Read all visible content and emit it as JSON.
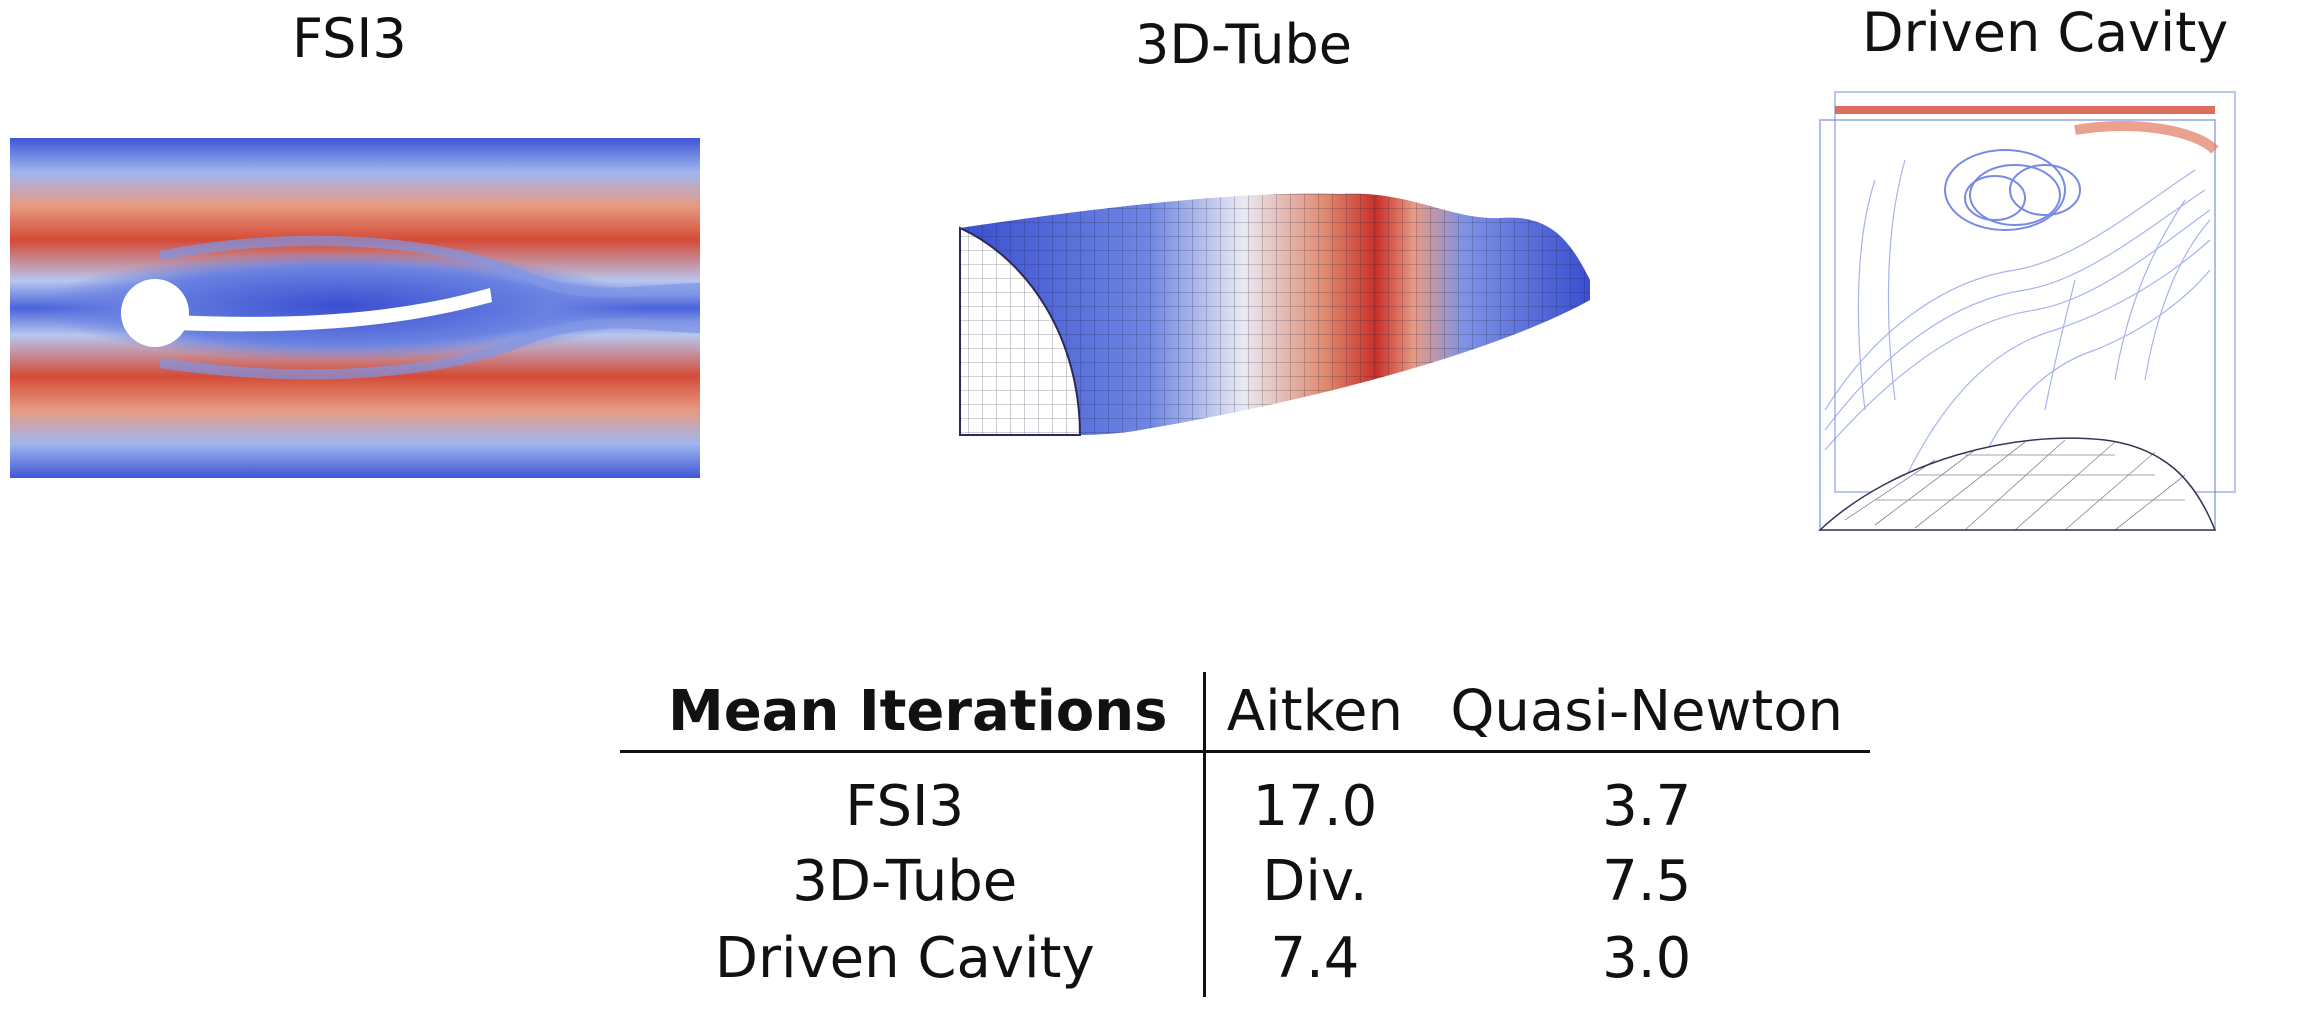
{
  "panels": [
    {
      "title": "FSI3",
      "image": "fsi3-flow-field"
    },
    {
      "title": "3D-Tube",
      "image": "3d-tube-mesh"
    },
    {
      "title": "Driven Cavity",
      "image": "driven-cavity-streamlines"
    }
  ],
  "table": {
    "header": {
      "label": "Mean Iterations",
      "columns": [
        "Aitken",
        "Quasi-Newton"
      ]
    },
    "rows": [
      {
        "case": "FSI3",
        "values": [
          "17.0",
          "3.7"
        ]
      },
      {
        "case": "3D-Tube",
        "values": [
          "Div.",
          "7.5"
        ]
      },
      {
        "case": "Driven Cavity",
        "values": [
          "7.4",
          "3.0"
        ]
      }
    ]
  },
  "colors": {
    "cold": "#3a4fd0",
    "mid": "#f2f2f2",
    "hot": "#d13a2a"
  }
}
